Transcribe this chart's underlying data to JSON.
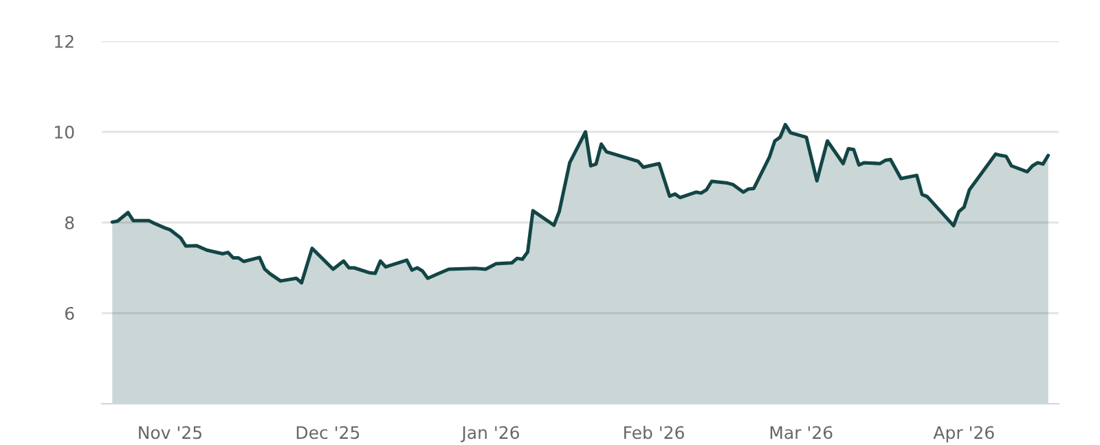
{
  "chart_data": {
    "type": "area",
    "x": [
      "2025-10-21",
      "2025-10-22",
      "2025-10-24",
      "2025-10-25",
      "2025-10-28",
      "2025-10-29",
      "2025-10-31",
      "2025-11-01",
      "2025-11-03",
      "2025-11-04",
      "2025-11-06",
      "2025-11-08",
      "2025-11-11",
      "2025-11-12",
      "2025-11-13",
      "2025-11-14",
      "2025-11-15",
      "2025-11-18",
      "2025-11-19",
      "2025-11-20",
      "2025-11-22",
      "2025-11-25",
      "2025-11-26",
      "2025-11-28",
      "2025-12-02",
      "2025-12-04",
      "2025-12-05",
      "2025-12-06",
      "2025-12-09",
      "2025-12-10",
      "2025-12-11",
      "2025-12-12",
      "2025-12-16",
      "2025-12-17",
      "2025-12-18",
      "2025-12-19",
      "2025-12-20",
      "2025-12-22",
      "2025-12-24",
      "2025-12-29",
      "2025-12-31",
      "2026-01-02",
      "2026-01-05",
      "2026-01-06",
      "2026-01-07",
      "2026-01-08",
      "2026-01-09",
      "2026-01-13",
      "2026-01-14",
      "2026-01-16",
      "2026-01-19",
      "2026-01-20",
      "2026-01-21",
      "2026-01-22",
      "2026-01-23",
      "2026-01-29",
      "2026-01-30",
      "2026-02-02",
      "2026-02-04",
      "2026-02-05",
      "2026-02-06",
      "2026-02-09",
      "2026-02-10",
      "2026-02-11",
      "2026-02-12",
      "2026-02-15",
      "2026-02-16",
      "2026-02-18",
      "2026-02-19",
      "2026-02-20",
      "2026-02-23",
      "2026-02-24",
      "2026-02-25",
      "2026-02-26",
      "2026-02-27",
      "2026-03-02",
      "2026-03-04",
      "2026-03-06",
      "2026-03-09",
      "2026-03-10",
      "2026-03-11",
      "2026-03-12",
      "2026-03-13",
      "2026-03-16",
      "2026-03-17",
      "2026-03-18",
      "2026-03-20",
      "2026-03-23",
      "2026-03-24",
      "2026-03-25",
      "2026-03-30",
      "2026-03-31",
      "2026-04-01",
      "2026-04-02",
      "2026-04-07",
      "2026-04-08",
      "2026-04-09",
      "2026-04-10",
      "2026-04-13",
      "2026-04-14",
      "2026-04-15",
      "2026-04-16",
      "2026-04-17"
    ],
    "series": [
      {
        "color": "#134545",
        "values": [
          8.01,
          8.03,
          8.22,
          8.04,
          8.04,
          7.98,
          7.88,
          7.84,
          7.66,
          7.48,
          7.49,
          7.39,
          7.31,
          7.34,
          7.22,
          7.22,
          7.14,
          7.23,
          6.97,
          6.87,
          6.71,
          6.77,
          6.67,
          7.43,
          6.97,
          7.15,
          7.0,
          7.0,
          6.89,
          6.88,
          7.15,
          7.02,
          7.17,
          6.95,
          7.0,
          6.93,
          6.77,
          6.87,
          6.97,
          6.99,
          6.97,
          7.09,
          7.11,
          7.21,
          7.19,
          7.35,
          8.26,
          7.94,
          8.24,
          9.32,
          10.0,
          9.25,
          9.29,
          9.73,
          9.56,
          9.35,
          9.22,
          9.3,
          8.58,
          8.63,
          8.55,
          8.67,
          8.65,
          8.72,
          8.91,
          8.87,
          8.84,
          8.67,
          8.74,
          8.75,
          9.45,
          9.8,
          9.88,
          10.16,
          9.98,
          9.88,
          8.92,
          9.8,
          9.3,
          9.63,
          9.61,
          9.27,
          9.32,
          9.3,
          9.37,
          9.39,
          8.97,
          9.04,
          8.62,
          8.57,
          7.93,
          8.24,
          8.34,
          8.72,
          9.51,
          9.48,
          9.46,
          9.25,
          9.12,
          9.25,
          9.32,
          9.29,
          9.48
        ]
      }
    ],
    "xlim": [
      "2025-10-19",
      "2026-04-19"
    ],
    "xticks": [
      {
        "value": "2025-11-01",
        "label": "Nov '25"
      },
      {
        "value": "2025-12-01",
        "label": "Dec '25"
      },
      {
        "value": "2026-01-01",
        "label": "Jan '26"
      },
      {
        "value": "2026-02-01",
        "label": "Feb '26"
      },
      {
        "value": "2026-03-01",
        "label": "Mar '26"
      },
      {
        "value": "2026-04-01",
        "label": "Apr '26"
      }
    ],
    "ylim": [
      4,
      12
    ],
    "yticks": [
      6,
      8,
      10,
      12
    ],
    "grid": "y",
    "legend": false,
    "marker": "none",
    "line_style": "solid"
  }
}
